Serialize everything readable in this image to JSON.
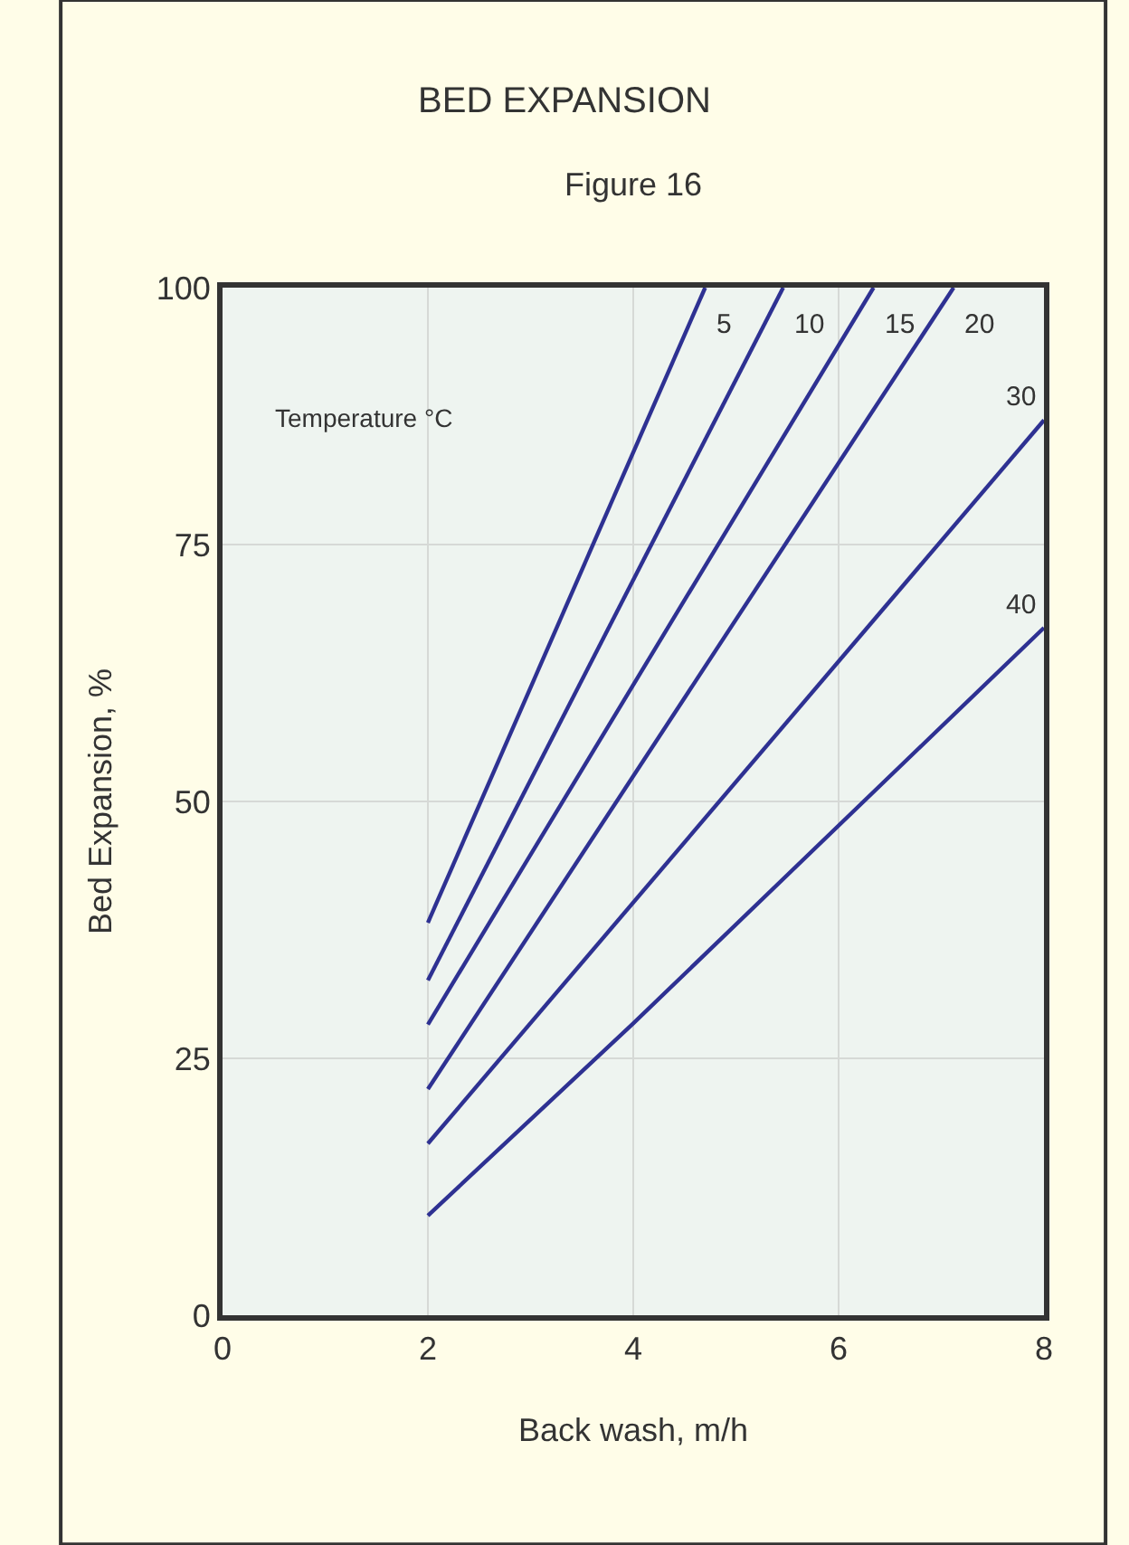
{
  "chart_data": {
    "type": "line",
    "title": "BED EXPANSION",
    "subtitle": "Figure 16",
    "xlabel": "Back wash, m/h",
    "ylabel": "Bed Expansion, %",
    "annotations": [
      "Temperature °C"
    ],
    "series": [
      {
        "name": "5",
        "color": "#2e3192",
        "x": [
          2,
          4.7
        ],
        "values": [
          38.2,
          100
        ]
      },
      {
        "name": "10",
        "color": "#2e3192",
        "x": [
          2,
          5.46
        ],
        "values": [
          32.6,
          100
        ]
      },
      {
        "name": "15",
        "color": "#2e3192",
        "x": [
          2,
          6.34
        ],
        "values": [
          28.3,
          100
        ]
      },
      {
        "name": "20",
        "color": "#2e3192",
        "x": [
          2,
          7.12
        ],
        "values": [
          22.0,
          100
        ]
      },
      {
        "name": "30",
        "color": "#2e3192",
        "x": [
          2,
          8
        ],
        "values": [
          16.7,
          87.1
        ]
      },
      {
        "name": "40",
        "color": "#2e3192",
        "x": [
          2,
          4,
          8
        ],
        "values": [
          9.7,
          28.4,
          66.9
        ]
      }
    ],
    "xlim": [
      0,
      8
    ],
    "xticks": [
      0,
      2,
      4,
      6,
      8
    ],
    "ylim": [
      0,
      100
    ],
    "yticks": [
      0,
      25,
      50,
      75,
      100
    ],
    "grid": true,
    "legend": false,
    "marker": "none",
    "line_style": "solid"
  }
}
